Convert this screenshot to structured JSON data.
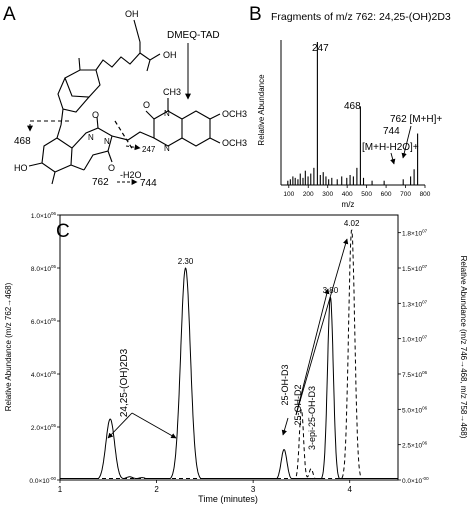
{
  "panels": {
    "a": {
      "letter": "A",
      "reagent_label": "DMEQ-TAD",
      "group_oh1": "OH",
      "group_oh2": "OH",
      "group_och3_top": "OCH3",
      "group_och3_bottom": "OCH3",
      "group_ch3": "CH3",
      "group_o_carbonyl": "O",
      "group_n_methyl": "N",
      "group_n_ring": "N",
      "group_ho": "HO",
      "ring_o1": "O",
      "ring_o2": "O",
      "ring_n1": "N",
      "ring_n2": "N",
      "frag_468": "468",
      "frag_247": "247",
      "loss_from": "762",
      "loss_label": "-H2O",
      "loss_to": "744"
    },
    "b": {
      "letter": "B",
      "title_prefix": "Fragments of m/z 762: ",
      "title_compound": "24,25-(OH)2D3",
      "y_axis_label": "Relative Abundance",
      "x_axis_label": "m/z",
      "ann_247": "247",
      "ann_468": "468",
      "ann_762": "762 [M+H]+",
      "ann_744_value": "744",
      "ann_744_ion": "[M+H-H2O]+"
    },
    "c": {
      "letter": "C",
      "x_axis_label": "Time (minutes)",
      "y_left_label": "Relative Abundance (m/z 762→468)",
      "y_right_label": "Relative Abundance (m/z 746→468, m/z 758→468)",
      "left_ticks": [
        "0.0×10^-00",
        "2.0×10^05",
        "4.0×10^05",
        "6.0×10^05",
        "8.0×10^05",
        "1.0×10^06"
      ],
      "right_ticks": [
        "0.0×10^-00",
        "2.5×10^06",
        "5.0×10^06",
        "7.5×10^06",
        "1.0×10^07",
        "1.3×10^07",
        "1.5×10^07",
        "1.8×10^07"
      ],
      "compound_label_2425": "24,25-(OH)2D3",
      "compound_label_25oh": "25-OH-D3",
      "compound_label_25ohd2": "25-OH-D2",
      "compound_label_3epi": "3-epi-25-OH-D3"
    }
  },
  "chart_data": [
    {
      "type": "bar",
      "panel": "B",
      "title": "Fragments of m/z 762: 24,25-(OH)2D3",
      "xlabel": "m/z",
      "ylabel": "Relative Abundance",
      "xlim": [
        60,
        800
      ],
      "x_ticks": [
        100,
        200,
        300,
        400,
        500,
        600,
        700,
        800
      ],
      "ylim": [
        0,
        100
      ],
      "y_ticks_shown": false,
      "peaks": [
        {
          "mz": 95,
          "abundance": 3
        },
        {
          "mz": 108,
          "abundance": 4
        },
        {
          "mz": 121,
          "abundance": 6
        },
        {
          "mz": 133,
          "abundance": 5
        },
        {
          "mz": 147,
          "abundance": 4
        },
        {
          "mz": 159,
          "abundance": 8
        },
        {
          "mz": 173,
          "abundance": 5
        },
        {
          "mz": 185,
          "abundance": 10
        },
        {
          "mz": 199,
          "abundance": 6
        },
        {
          "mz": 213,
          "abundance": 8
        },
        {
          "mz": 229,
          "abundance": 12
        },
        {
          "mz": 247,
          "abundance": 100
        },
        {
          "mz": 262,
          "abundance": 7
        },
        {
          "mz": 277,
          "abundance": 9
        },
        {
          "mz": 291,
          "abundance": 6
        },
        {
          "mz": 305,
          "abundance": 4
        },
        {
          "mz": 321,
          "abundance": 5
        },
        {
          "mz": 349,
          "abundance": 4
        },
        {
          "mz": 372,
          "abundance": 6
        },
        {
          "mz": 398,
          "abundance": 5
        },
        {
          "mz": 415,
          "abundance": 7
        },
        {
          "mz": 432,
          "abundance": 6
        },
        {
          "mz": 450,
          "abundance": 12
        },
        {
          "mz": 468,
          "abundance": 55
        },
        {
          "mz": 484,
          "abundance": 5
        },
        {
          "mz": 528,
          "abundance": 3
        },
        {
          "mz": 590,
          "abundance": 3
        },
        {
          "mz": 688,
          "abundance": 4
        },
        {
          "mz": 726,
          "abundance": 6
        },
        {
          "mz": 744,
          "abundance": 11
        },
        {
          "mz": 762,
          "abundance": 36
        }
      ],
      "annotations": [
        "247",
        "468",
        "744 [M+H-H2O]+",
        "762 [M+H]+"
      ]
    },
    {
      "type": "line",
      "panel": "C",
      "xlabel": "Time (minutes)",
      "ylabel": "Relative Abundance (m/z 762→468)",
      "ylabel_right": "Relative Abundance (m/z 746→468, m/z 758→468)",
      "xlim": [
        1.0,
        4.5
      ],
      "x_ticks": [
        1,
        2,
        3,
        4
      ],
      "ylim_left": [
        0,
        1000000
      ],
      "ylim_right": [
        0,
        18750000
      ],
      "series": [
        {
          "style": "solid",
          "axis": "left",
          "peaks": [
            {
              "time": 1.52,
              "height": 230000,
              "width": 0.045
            },
            {
              "time": 1.72,
              "height": 12000,
              "width": 0.04
            },
            {
              "time": 1.85,
              "height": 9000,
              "width": 0.04
            },
            {
              "time": 2.3,
              "height": 800000,
              "width": 0.05,
              "label": "2.30"
            },
            {
              "time": 3.32,
              "height": 115000,
              "width": 0.03
            },
            {
              "time": 3.8,
              "height": 690000,
              "width": 0.03,
              "label": "3.80"
            }
          ]
        },
        {
          "style": "dashed",
          "axis": "right",
          "peaks": [
            {
              "time": 3.5,
              "height": 5000000,
              "width": 0.022
            },
            {
              "time": 3.6,
              "height": 800000,
              "width": 0.02
            },
            {
              "time": 4.02,
              "height": 17700000,
              "width": 0.032,
              "label": "4.02"
            }
          ]
        }
      ]
    }
  ]
}
